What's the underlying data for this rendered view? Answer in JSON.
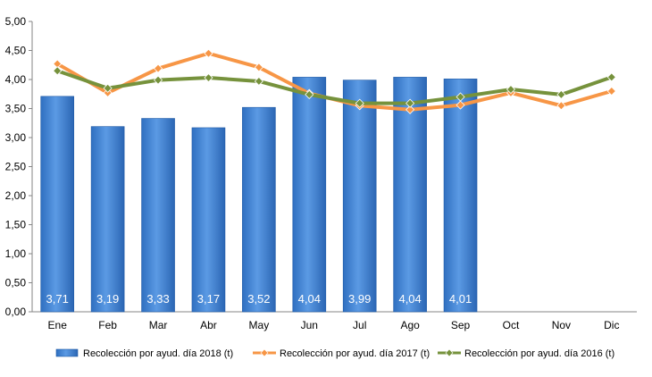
{
  "chart_data": {
    "type": "bar",
    "categories": [
      "Ene",
      "Feb",
      "Mar",
      "Abr",
      "May",
      "Jun",
      "Jul",
      "Ago",
      "Sep",
      "Oct",
      "Nov",
      "Dic"
    ],
    "y_ticks": [
      "0,00",
      "0,50",
      "1,00",
      "1,50",
      "2,00",
      "2,50",
      "3,00",
      "3,50",
      "4,00",
      "4,50",
      "5,00"
    ],
    "ylim": [
      0,
      5
    ],
    "grid": false,
    "legend_position": "bottom",
    "series": [
      {
        "name": "Recolección por ayud. día 2018 (t)",
        "type": "bar",
        "color": "#4a86d0",
        "values": [
          3.71,
          3.19,
          3.33,
          3.17,
          3.52,
          4.04,
          3.99,
          4.04,
          4.01,
          null,
          null,
          null
        ],
        "labels": [
          "3,71",
          "3,19",
          "3,33",
          "3,17",
          "3,52",
          "4,04",
          "3,99",
          "4,04",
          "4,01",
          "",
          "",
          ""
        ]
      },
      {
        "name": "Recolección por ayud. día 2017 (t)",
        "type": "line",
        "color": "#f79646",
        "marker_color": "#f79646",
        "values": [
          4.27,
          3.77,
          4.19,
          4.45,
          4.21,
          3.76,
          3.55,
          3.48,
          3.56,
          3.77,
          3.55,
          3.8
        ]
      },
      {
        "name": "Recolección por ayud. día 2016 (t)",
        "type": "line",
        "color": "#76923c",
        "marker_color": "#76923c",
        "values": [
          4.15,
          3.85,
          3.99,
          4.03,
          3.97,
          3.74,
          3.59,
          3.59,
          3.7,
          3.83,
          3.74,
          4.04
        ]
      }
    ]
  }
}
